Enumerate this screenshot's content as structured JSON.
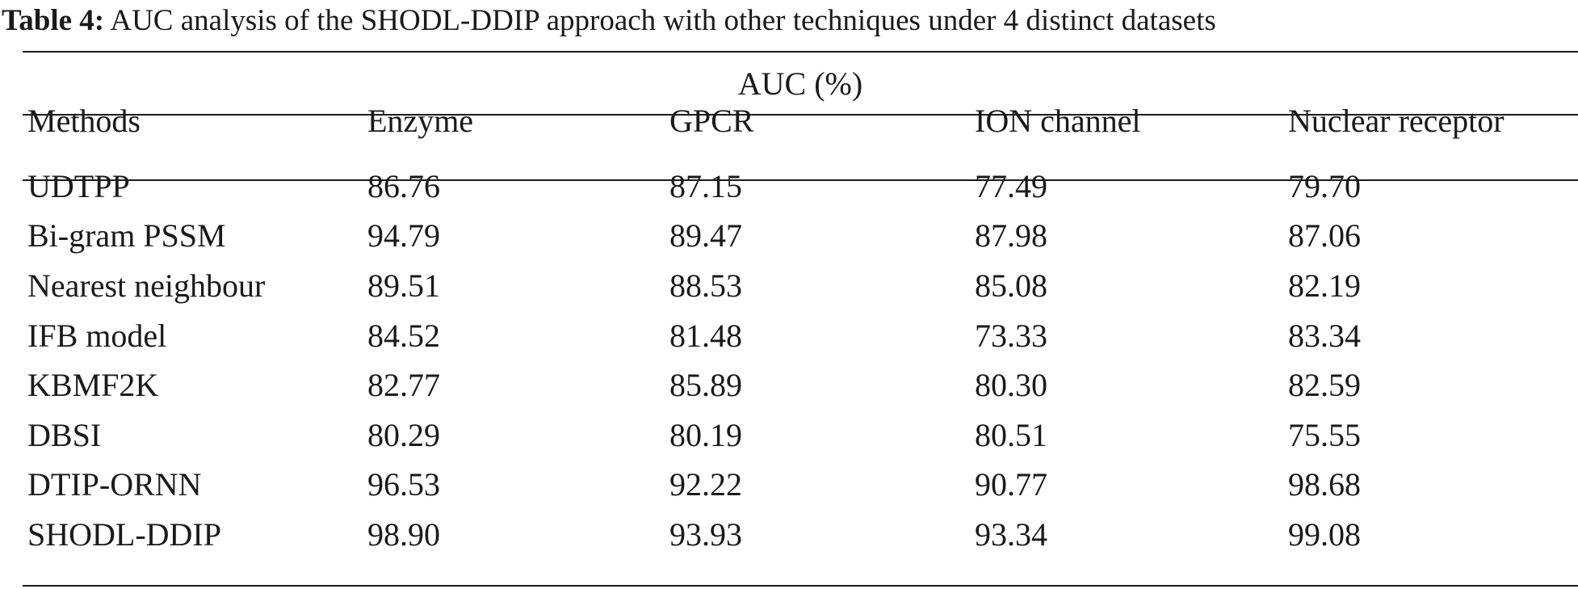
{
  "caption": {
    "label": "Table 4:",
    "text": " AUC analysis of the SHODL-DDIP approach with other techniques under 4 distinct datasets"
  },
  "table": {
    "spanner": "AUC (%)",
    "columns": [
      "Methods",
      "Enzyme",
      "GPCR",
      "ION channel",
      "Nuclear receptor"
    ],
    "rows": [
      [
        "UDTPP",
        "86.76",
        "87.15",
        "77.49",
        "79.70"
      ],
      [
        "Bi-gram PSSM",
        "94.79",
        "89.47",
        "87.98",
        "87.06"
      ],
      [
        "Nearest neighbour",
        "89.51",
        "88.53",
        "85.08",
        "82.19"
      ],
      [
        "IFB model",
        "84.52",
        "81.48",
        "73.33",
        "83.34"
      ],
      [
        "KBMF2K",
        "82.77",
        "85.89",
        "80.30",
        "82.59"
      ],
      [
        "DBSI",
        "80.29",
        "80.19",
        "80.51",
        "75.55"
      ],
      [
        "DTIP-ORNN",
        "96.53",
        "92.22",
        "90.77",
        "98.68"
      ],
      [
        "SHODL-DDIP",
        "98.90",
        "93.93",
        "93.34",
        "99.08"
      ]
    ]
  }
}
